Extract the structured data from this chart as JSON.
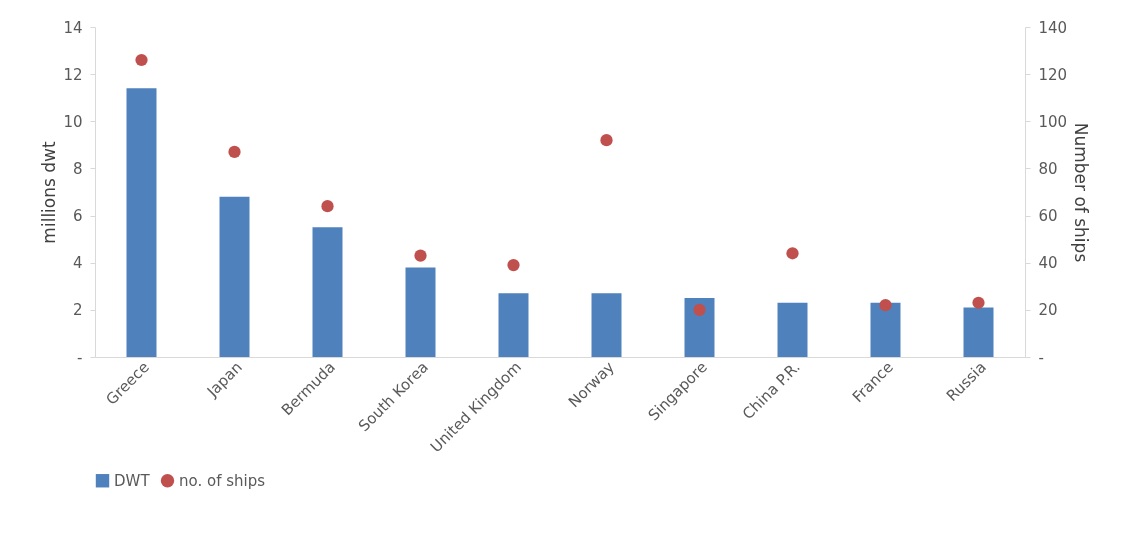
{
  "chart_data": {
    "type": "bar",
    "categories": [
      "Greece",
      "Japan",
      "Bermuda",
      "South Korea",
      "United Kingdom",
      "Norway",
      "Singapore",
      "China P.R.",
      "France",
      "Russia"
    ],
    "series": [
      {
        "name": "DWT",
        "color": "#4f81bd",
        "values": [
          11.4,
          6.8,
          5.5,
          3.8,
          2.7,
          2.7,
          2.5,
          2.3,
          2.3,
          2.1
        ]
      },
      {
        "name": "no. of ships",
        "type": "scatter",
        "axis": "y2",
        "color": "#c0504d",
        "values": [
          126,
          87,
          64,
          43,
          39,
          92,
          20,
          44,
          22,
          23
        ]
      }
    ],
    "ylabel": "millions dwt",
    "y2label": "Number of ships",
    "ylim": [
      0,
      14
    ],
    "yticks": [
      {
        "value": 0,
        "label": "-"
      },
      2,
      4,
      6,
      8,
      10,
      12,
      14
    ],
    "y2lim": [
      0,
      140
    ],
    "y2ticks": [
      {
        "value": 0,
        "label": "-"
      },
      20,
      40,
      60,
      80,
      100,
      120,
      140
    ],
    "legend": "bottom",
    "grid": false,
    "marker": "circle"
  }
}
